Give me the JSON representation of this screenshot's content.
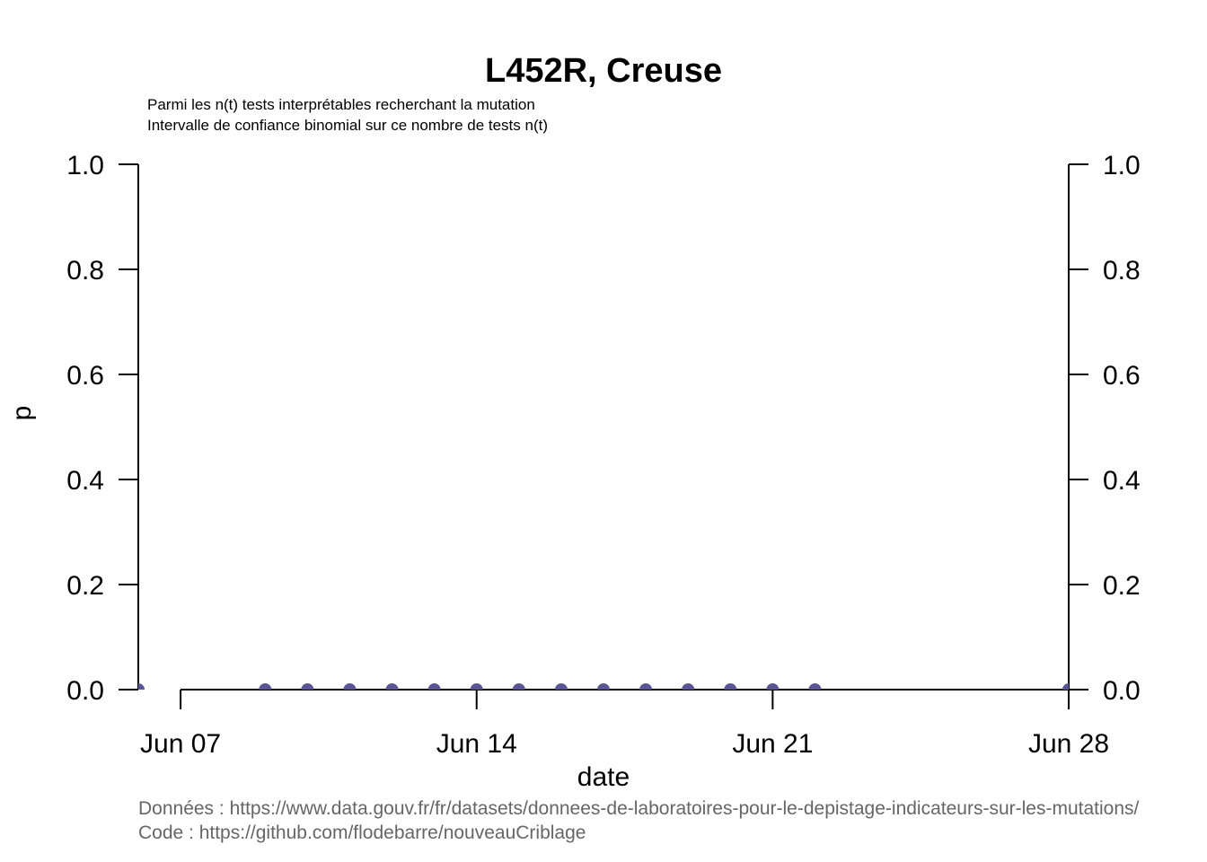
{
  "chart_data": {
    "type": "scatter",
    "title": "L452R, Creuse",
    "subtitle_lines": [
      "Parmi les n(t) tests interprétables recherchant la mutation",
      "Intervalle de confiance binomial sur ce nombre de tests n(t)"
    ],
    "xlabel": "date",
    "ylabel": "p",
    "ylim": [
      0,
      1
    ],
    "xlim": [
      "2021-06-06",
      "2021-06-28"
    ],
    "y_ticks": [
      "0.0",
      "0.2",
      "0.4",
      "0.6",
      "0.8",
      "1.0"
    ],
    "x_ticks": [
      {
        "date": "2021-06-07",
        "label": "Jun 07"
      },
      {
        "date": "2021-06-14",
        "label": "Jun 14"
      },
      {
        "date": "2021-06-21",
        "label": "Jun 21"
      },
      {
        "date": "2021-06-28",
        "label": "Jun 28"
      }
    ],
    "point_color": "#5b5596",
    "series": [
      {
        "x": [
          "2021-06-06",
          "2021-06-09",
          "2021-06-10",
          "2021-06-11",
          "2021-06-12",
          "2021-06-13",
          "2021-06-14",
          "2021-06-15",
          "2021-06-16",
          "2021-06-17",
          "2021-06-18",
          "2021-06-19",
          "2021-06-20",
          "2021-06-21",
          "2021-06-22",
          "2021-06-28"
        ],
        "y": [
          0,
          0,
          0,
          0,
          0,
          0,
          0,
          0,
          0,
          0,
          0,
          0,
          0,
          0,
          0,
          0
        ]
      }
    ]
  },
  "footer": {
    "data_source": "Données : https://www.data.gouv.fr/fr/datasets/donnees-de-laboratoires-pour-le-depistage-indicateurs-sur-les-mutations/",
    "code_source": "Code : https://github.com/flodebarre/nouveauCriblage"
  }
}
